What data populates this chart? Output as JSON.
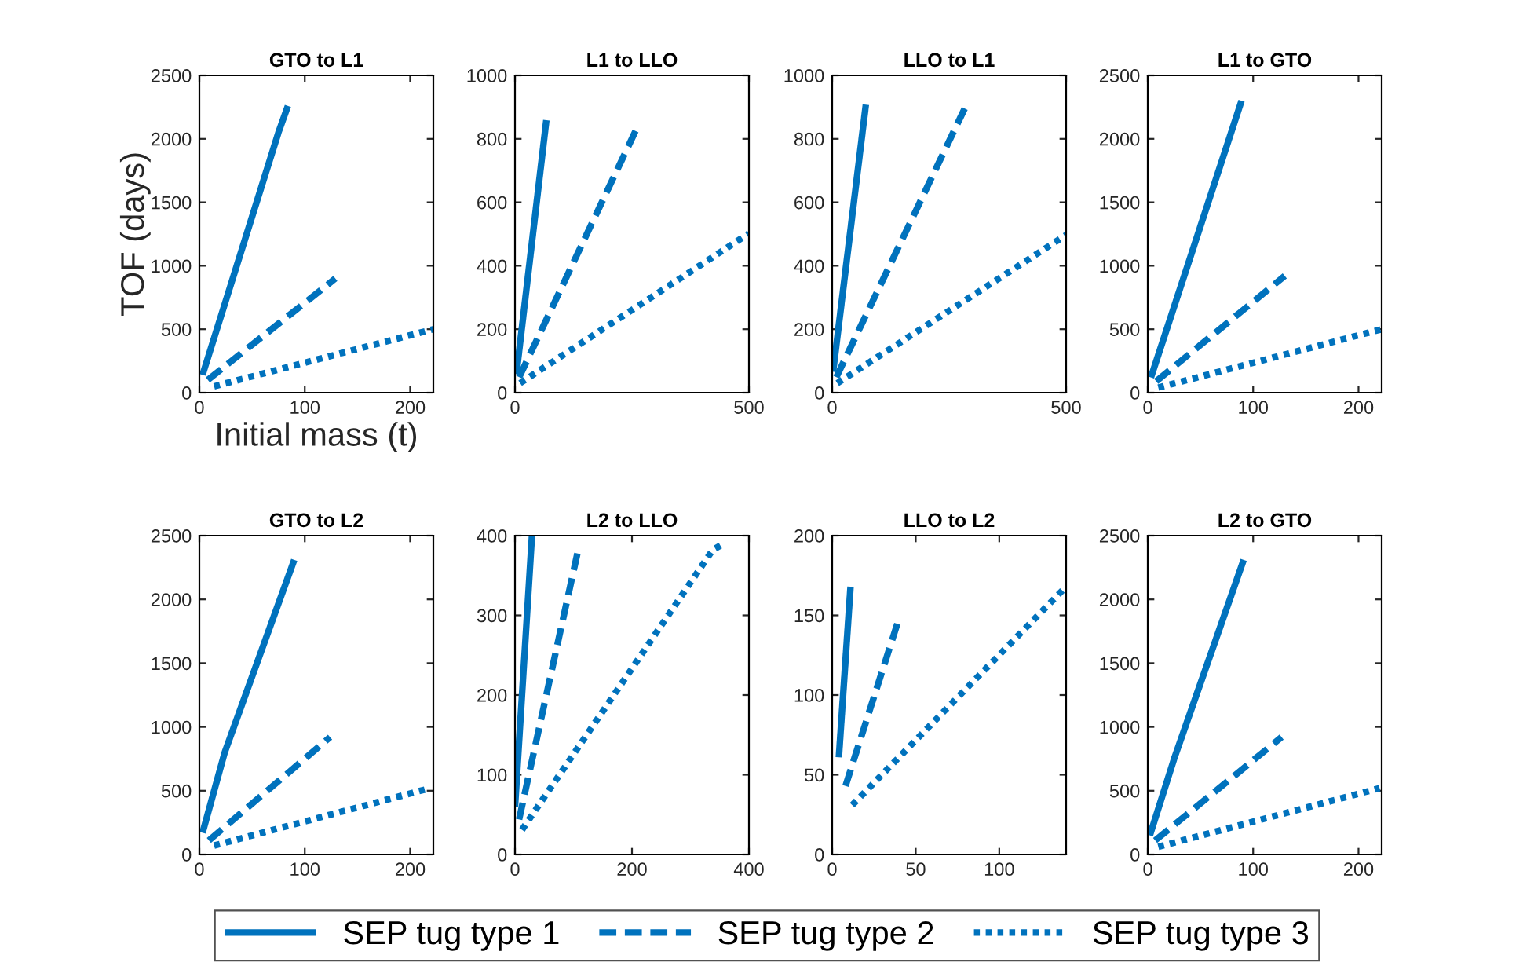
{
  "chart_data": [
    {
      "type": "line",
      "title": "GTO to L1",
      "xlabel": "Initial mass (t)",
      "ylabel": "TOF (days)",
      "xlim": [
        0,
        222
      ],
      "xticks": [
        0,
        100,
        200
      ],
      "ylim": [
        0,
        2500
      ],
      "yticks": [
        0,
        500,
        1000,
        1500,
        2000,
        2500
      ],
      "legend": "bottom",
      "series": [
        {
          "name": "SEP tug type 1",
          "color": "#0072bd",
          "line_style": "solid",
          "x": [
            3,
            75,
            84
          ],
          "values": [
            140,
            2050,
            2260
          ]
        },
        {
          "name": "SEP tug type 2",
          "color": "#0072bd",
          "line_style": "dashed",
          "x": [
            8,
            129
          ],
          "values": [
            100,
            900
          ]
        },
        {
          "name": "SEP tug type 3",
          "color": "#0072bd",
          "line_style": "dotted",
          "x": [
            14,
            222
          ],
          "values": [
            50,
            500
          ]
        }
      ]
    },
    {
      "type": "line",
      "title": "L1 to LLO",
      "xlim": [
        0,
        500
      ],
      "xticks": [
        0,
        500
      ],
      "ylim": [
        0,
        1000
      ],
      "yticks": [
        0,
        200,
        400,
        600,
        800,
        1000
      ],
      "series": [
        {
          "color": "#0072bd",
          "line_style": "solid",
          "x": [
            3,
            67
          ],
          "values": [
            58,
            859
          ]
        },
        {
          "color": "#0072bd",
          "line_style": "dashed",
          "x": [
            9,
            258
          ],
          "values": [
            49,
            826
          ]
        },
        {
          "color": "#0072bd",
          "line_style": "dotted",
          "x": [
            11,
            500
          ],
          "values": [
            30,
            502
          ]
        }
      ]
    },
    {
      "type": "line",
      "title": "LLO to L1",
      "xlim": [
        0,
        500
      ],
      "xticks": [
        0,
        500
      ],
      "ylim": [
        0,
        1000
      ],
      "yticks": [
        0,
        200,
        400,
        600,
        800,
        1000
      ],
      "series": [
        {
          "color": "#0072bd",
          "line_style": "solid",
          "x": [
            2,
            72
          ],
          "values": [
            66,
            908
          ]
        },
        {
          "color": "#0072bd",
          "line_style": "dashed",
          "x": [
            9,
            285
          ],
          "values": [
            49,
            901
          ]
        },
        {
          "color": "#0072bd",
          "line_style": "dotted",
          "x": [
            11,
            500
          ],
          "values": [
            30,
            497
          ]
        }
      ]
    },
    {
      "type": "line",
      "title": "L1 to GTO",
      "xlim": [
        0,
        222
      ],
      "xticks": [
        0,
        100,
        200
      ],
      "ylim": [
        0,
        2500
      ],
      "yticks": [
        0,
        500,
        1000,
        1500,
        2000,
        2500
      ],
      "series": [
        {
          "color": "#0072bd",
          "line_style": "solid",
          "x": [
            3,
            89
          ],
          "values": [
            120,
            2300
          ]
        },
        {
          "color": "#0072bd",
          "line_style": "dashed",
          "x": [
            8,
            130
          ],
          "values": [
            90,
            920
          ]
        },
        {
          "color": "#0072bd",
          "line_style": "dotted",
          "x": [
            10,
            222
          ],
          "values": [
            40,
            500
          ]
        }
      ]
    },
    {
      "type": "line",
      "title": "GTO to L2",
      "xlim": [
        0,
        222
      ],
      "xticks": [
        0,
        100,
        200
      ],
      "ylim": [
        0,
        2500
      ],
      "yticks": [
        0,
        500,
        1000,
        1500,
        2000,
        2500
      ],
      "series": [
        {
          "color": "#0072bd",
          "line_style": "solid",
          "x": [
            3,
            24,
            90
          ],
          "values": [
            170,
            800,
            2310
          ]
        },
        {
          "color": "#0072bd",
          "line_style": "dashed",
          "x": [
            9,
            124
          ],
          "values": [
            110,
            920
          ]
        },
        {
          "color": "#0072bd",
          "line_style": "dotted",
          "x": [
            14,
            219
          ],
          "values": [
            70,
            520
          ]
        }
      ]
    },
    {
      "type": "line",
      "title": "L2 to LLO",
      "xlim": [
        0,
        400
      ],
      "xticks": [
        0,
        200,
        400
      ],
      "ylim": [
        0,
        400
      ],
      "yticks": [
        0,
        100,
        200,
        300,
        400
      ],
      "series": [
        {
          "color": "#0072bd",
          "line_style": "solid",
          "x": [
            0,
            29
          ],
          "values": [
            60,
            400
          ]
        },
        {
          "color": "#0072bd",
          "line_style": "dashed",
          "x": [
            7,
            108
          ],
          "values": [
            44,
            382
          ]
        },
        {
          "color": "#0072bd",
          "line_style": "dotted",
          "x": [
            12,
            338,
            359
          ],
          "values": [
            31,
            382,
            391
          ]
        }
      ]
    },
    {
      "type": "line",
      "title": "LLO to L2",
      "xlim": [
        0,
        140
      ],
      "xticks": [
        0,
        50,
        100
      ],
      "ylim": [
        0,
        200
      ],
      "yticks": [
        0,
        50,
        100,
        150,
        200
      ],
      "series": [
        {
          "color": "#0072bd",
          "line_style": "solid",
          "x": [
            4,
            11
          ],
          "values": [
            61,
            168
          ]
        },
        {
          "color": "#0072bd",
          "line_style": "dashed",
          "x": [
            8,
            40
          ],
          "values": [
            43,
            148
          ]
        },
        {
          "color": "#0072bd",
          "line_style": "dotted",
          "x": [
            12,
            140
          ],
          "values": [
            31,
            168
          ]
        }
      ]
    },
    {
      "type": "line",
      "title": "L2 to GTO",
      "xlim": [
        0,
        222
      ],
      "xticks": [
        0,
        100,
        200
      ],
      "ylim": [
        0,
        2500
      ],
      "yticks": [
        0,
        500,
        1000,
        1500,
        2000,
        2500
      ],
      "series": [
        {
          "color": "#0072bd",
          "line_style": "solid",
          "x": [
            2,
            25,
            91
          ],
          "values": [
            150,
            750,
            2310
          ]
        },
        {
          "color": "#0072bd",
          "line_style": "dashed",
          "x": [
            7,
            127
          ],
          "values": [
            110,
            920
          ]
        },
        {
          "color": "#0072bd",
          "line_style": "dotted",
          "x": [
            10,
            220
          ],
          "values": [
            60,
            520
          ]
        }
      ]
    }
  ]
}
